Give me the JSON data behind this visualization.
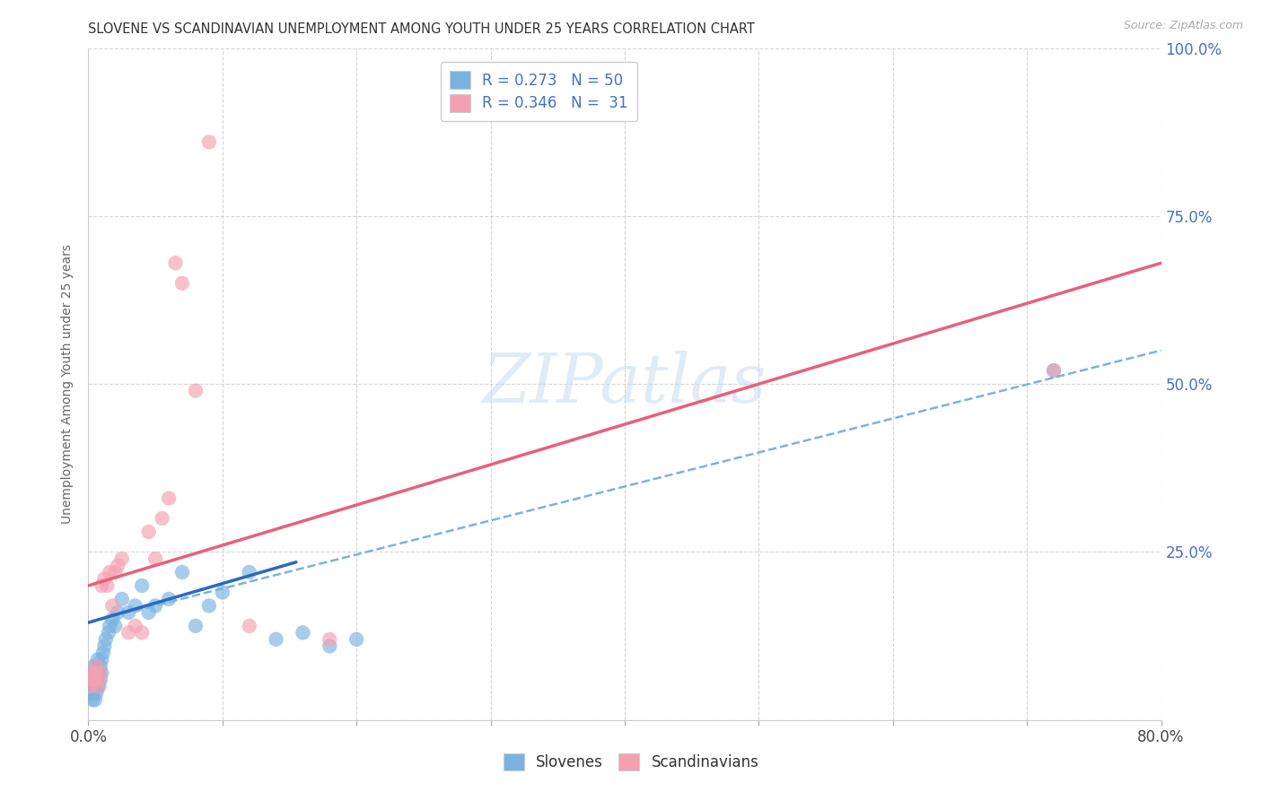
{
  "title": "SLOVENE VS SCANDINAVIAN UNEMPLOYMENT AMONG YOUTH UNDER 25 YEARS CORRELATION CHART",
  "source": "Source: ZipAtlas.com",
  "ylabel": "Unemployment Among Youth under 25 years",
  "xlim": [
    0.0,
    0.8
  ],
  "ylim": [
    0.0,
    1.0
  ],
  "xticks": [
    0.0,
    0.1,
    0.2,
    0.3,
    0.4,
    0.5,
    0.6,
    0.7,
    0.8
  ],
  "yticks": [
    0.0,
    0.25,
    0.5,
    0.75,
    1.0
  ],
  "slovene_color": "#7ab3e0",
  "scandinavian_color": "#f4a0b0",
  "slovene_line_color": "#2a6abf",
  "scandinavian_line_color": "#e8607a",
  "dashed_line_color": "#7ab3e0",
  "watermark": "ZIPatlas",
  "background_color": "#ffffff",
  "grid_color": "#cccccc",
  "slovene_x": [
    0.001,
    0.001,
    0.002,
    0.002,
    0.003,
    0.003,
    0.003,
    0.004,
    0.004,
    0.004,
    0.005,
    0.005,
    0.005,
    0.006,
    0.006,
    0.006,
    0.007,
    0.007,
    0.007,
    0.008,
    0.008,
    0.009,
    0.009,
    0.01,
    0.01,
    0.011,
    0.012,
    0.013,
    0.015,
    0.016,
    0.018,
    0.02,
    0.022,
    0.025,
    0.03,
    0.035,
    0.04,
    0.045,
    0.05,
    0.06,
    0.07,
    0.08,
    0.09,
    0.1,
    0.12,
    0.14,
    0.16,
    0.18,
    0.2,
    0.72
  ],
  "slovene_y": [
    0.04,
    0.05,
    0.04,
    0.06,
    0.03,
    0.05,
    0.07,
    0.04,
    0.06,
    0.08,
    0.03,
    0.05,
    0.07,
    0.04,
    0.06,
    0.08,
    0.05,
    0.07,
    0.09,
    0.05,
    0.07,
    0.06,
    0.08,
    0.07,
    0.09,
    0.1,
    0.11,
    0.12,
    0.13,
    0.14,
    0.15,
    0.14,
    0.16,
    0.18,
    0.16,
    0.17,
    0.2,
    0.16,
    0.17,
    0.18,
    0.22,
    0.14,
    0.17,
    0.19,
    0.22,
    0.12,
    0.13,
    0.11,
    0.12,
    0.52
  ],
  "scandinavian_x": [
    0.001,
    0.002,
    0.003,
    0.004,
    0.005,
    0.006,
    0.007,
    0.008,
    0.009,
    0.01,
    0.012,
    0.014,
    0.016,
    0.018,
    0.02,
    0.022,
    0.025,
    0.03,
    0.035,
    0.04,
    0.045,
    0.05,
    0.055,
    0.06,
    0.065,
    0.07,
    0.08,
    0.09,
    0.12,
    0.18,
    0.72
  ],
  "scandinavian_y": [
    0.05,
    0.06,
    0.07,
    0.06,
    0.07,
    0.08,
    0.05,
    0.06,
    0.07,
    0.2,
    0.21,
    0.2,
    0.22,
    0.17,
    0.22,
    0.23,
    0.24,
    0.13,
    0.14,
    0.13,
    0.28,
    0.24,
    0.3,
    0.33,
    0.68,
    0.65,
    0.49,
    0.86,
    0.14,
    0.12,
    0.52
  ],
  "slovene_line_x0": 0.0,
  "slovene_line_x1": 0.155,
  "slovene_line_y0": 0.145,
  "slovene_line_y1": 0.235,
  "scandinavian_line_x0": 0.0,
  "scandinavian_line_x1": 0.8,
  "scandinavian_line_y0": 0.2,
  "scandinavian_line_y1": 0.68,
  "dashed_line_x0": 0.0,
  "dashed_line_x1": 0.8,
  "dashed_line_y0": 0.145,
  "dashed_line_y1": 0.55
}
